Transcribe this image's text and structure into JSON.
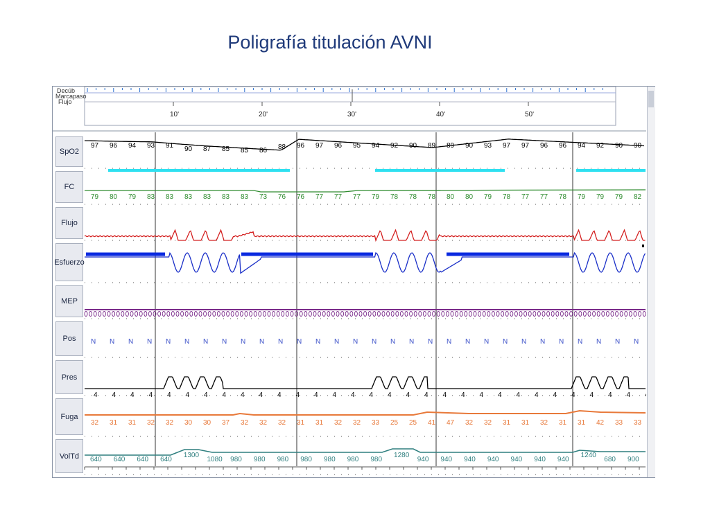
{
  "slide": {
    "title": "Poligrafía titulación AVNI"
  },
  "overview": {
    "channel_labels": [
      "Decúb",
      "Marcapaso",
      "Flujo"
    ],
    "ticks": [
      "10'",
      "20'",
      "30'",
      "40'",
      "50'"
    ]
  },
  "channels": [
    {
      "label": "SpO2",
      "color": "#000000",
      "values": [
        "97",
        "96",
        "94",
        "93",
        "91",
        "90",
        "87",
        "85",
        "85",
        "86",
        "88",
        "96",
        "97",
        "96",
        "95",
        "94",
        "92",
        "90",
        "89",
        "89",
        "90",
        "93",
        "97",
        "97",
        "96",
        "96",
        "94",
        "92",
        "90",
        "90"
      ]
    },
    {
      "label": "FC",
      "color": "#2e8b2e",
      "values": [
        "79",
        "80",
        "79",
        "83",
        "83",
        "83",
        "83",
        "83",
        "83",
        "73",
        "76",
        "76",
        "77",
        "77",
        "77",
        "79",
        "78",
        "78",
        "78",
        "80",
        "80",
        "79",
        "78",
        "77",
        "77",
        "78",
        "79",
        "79",
        "79",
        "82"
      ]
    },
    {
      "label": "Flujo",
      "color": "#d42020",
      "values": []
    },
    {
      "label": "Esfuerzo",
      "color": "#1a2fc8",
      "values": []
    },
    {
      "label": "MEP",
      "color": "#7a2a8a",
      "values": []
    },
    {
      "label": "Pos",
      "color": "#3a4fc8",
      "values": [
        "N",
        "N",
        "N",
        "N",
        "N",
        "N",
        "N",
        "N",
        "N",
        "N",
        "N",
        "N",
        "N",
        "N",
        "N",
        "N",
        "N",
        "N",
        "N",
        "N",
        "N",
        "N",
        "N",
        "N",
        "N",
        "N",
        "N",
        "N",
        "N",
        "N"
      ]
    },
    {
      "label": "Pres",
      "color": "#000000",
      "values": [
        "4",
        "4",
        "4",
        "4",
        "4",
        "4",
        "4",
        "4",
        "4",
        "4",
        "4",
        "4",
        "4",
        "4",
        "4",
        "4",
        "4",
        "4",
        "4",
        "4",
        "4",
        "4",
        "4",
        "4",
        "4",
        "4",
        "4",
        "4",
        "4",
        "4",
        "4"
      ]
    },
    {
      "label": "Fuga",
      "color": "#e8793a",
      "values": [
        "32",
        "31",
        "31",
        "32",
        "32",
        "30",
        "30",
        "37",
        "32",
        "32",
        "32",
        "31",
        "31",
        "32",
        "32",
        "33",
        "25",
        "25",
        "41",
        "47",
        "32",
        "32",
        "31",
        "31",
        "32",
        "31",
        "31",
        "42",
        "33",
        "33"
      ]
    },
    {
      "label": "VolTd",
      "color": "#2f7f7f",
      "values": [
        "640",
        "640",
        "640",
        "640",
        "1300",
        "1080",
        "980",
        "980",
        "980",
        "980",
        "980",
        "980",
        "980",
        "1280",
        "940",
        "940",
        "940",
        "940",
        "940",
        "940",
        "940",
        "1240",
        "680",
        "900"
      ]
    }
  ],
  "colors": {
    "desaturation_marker": "#2fe0f0",
    "event_marker": "#0a2ae0",
    "window_border": "#8a94a6"
  }
}
